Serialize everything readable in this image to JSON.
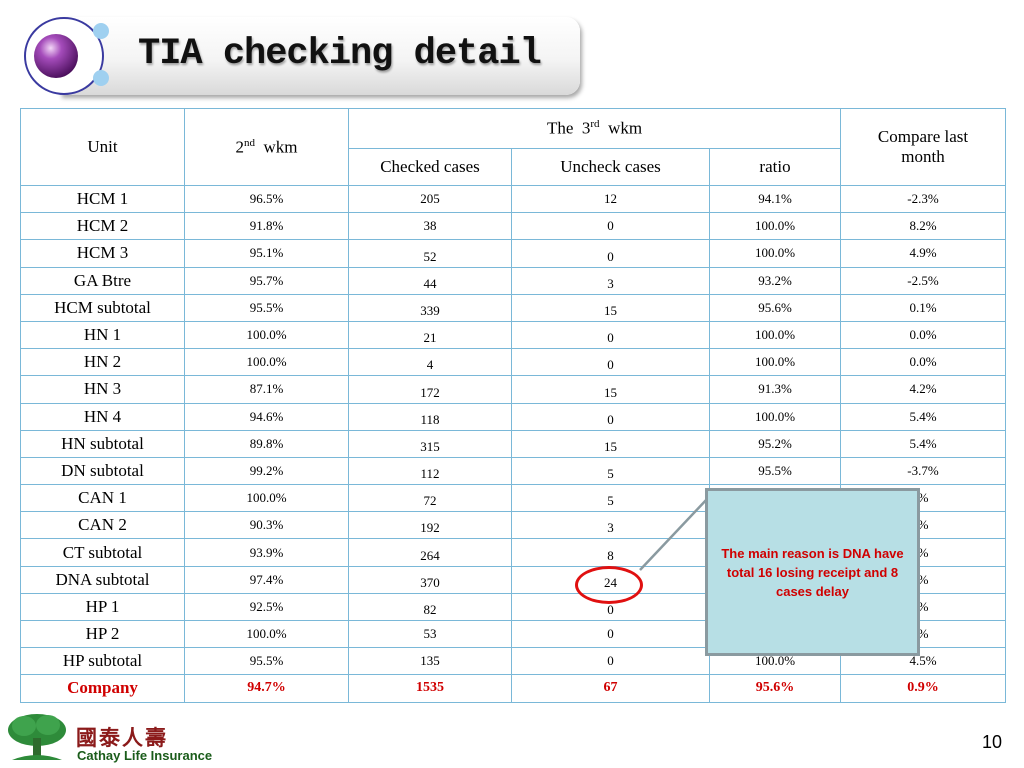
{
  "title": "TIA checking detail",
  "header": {
    "unit": "Unit",
    "prev_week_num": "2",
    "prev_week_sup": "nd",
    "prev_week_suffix": "wkm",
    "curr_week_prefix": "The",
    "curr_week_num": "3",
    "curr_week_sup": "rd",
    "curr_week_suffix": "wkm",
    "checked": "Checked cases",
    "uncheck": "Uncheck cases",
    "ratio": "ratio",
    "compare": "Compare last month"
  },
  "rows": [
    {
      "unit": "HCM 1",
      "prev": "96.5%",
      "checked": "205",
      "uncheck": "12",
      "ratio": "94.1%",
      "compare": "-2.3%"
    },
    {
      "unit": "HCM 2",
      "prev": "91.8%",
      "checked": "38",
      "uncheck": "0",
      "ratio": "100.0%",
      "compare": "8.2%"
    },
    {
      "unit": "HCM 3",
      "prev": "95.1%",
      "checked": "52",
      "uncheck": "0",
      "ratio": "100.0%",
      "compare": "4.9%"
    },
    {
      "unit": "GA Btre",
      "prev": "95.7%",
      "checked": "44",
      "uncheck": "3",
      "ratio": "93.2%",
      "compare": "-2.5%"
    },
    {
      "unit": "HCM subtotal",
      "prev": "95.5%",
      "checked": "339",
      "uncheck": "15",
      "ratio": "95.6%",
      "compare": "0.1%"
    },
    {
      "unit": "HN 1",
      "prev": "100.0%",
      "checked": "21",
      "uncheck": "0",
      "ratio": "100.0%",
      "compare": "0.0%"
    },
    {
      "unit": "HN 2",
      "prev": "100.0%",
      "checked": "4",
      "uncheck": "0",
      "ratio": "100.0%",
      "compare": "0.0%"
    },
    {
      "unit": "HN 3",
      "prev": "87.1%",
      "checked": "172",
      "uncheck": "15",
      "ratio": "91.3%",
      "compare": "4.2%"
    },
    {
      "unit": "HN 4",
      "prev": "94.6%",
      "checked": "118",
      "uncheck": "0",
      "ratio": "100.0%",
      "compare": "5.4%"
    },
    {
      "unit": "HN subtotal",
      "prev": "89.8%",
      "checked": "315",
      "uncheck": "15",
      "ratio": "95.2%",
      "compare": "5.4%"
    },
    {
      "unit": "DN subtotal",
      "prev": "99.2%",
      "checked": "112",
      "uncheck": "5",
      "ratio": "95.5%",
      "compare": "-3.7%"
    },
    {
      "unit": "CAN 1",
      "prev": "100.0%",
      "checked": "72",
      "uncheck": "5",
      "ratio": "",
      "compare": "%"
    },
    {
      "unit": "CAN 2",
      "prev": "90.3%",
      "checked": "192",
      "uncheck": "3",
      "ratio": "",
      "compare": "%"
    },
    {
      "unit": "CT subtotal",
      "prev": "93.9%",
      "checked": "264",
      "uncheck": "8",
      "ratio": "",
      "compare": "%"
    },
    {
      "unit": "DNA subtotal",
      "prev": "97.4%",
      "checked": "370",
      "uncheck": "24",
      "ratio": "",
      "compare": "%"
    },
    {
      "unit": "HP 1",
      "prev": "92.5%",
      "checked": "82",
      "uncheck": "0",
      "ratio": "",
      "compare": "%"
    },
    {
      "unit": "HP 2",
      "prev": "100.0%",
      "checked": "53",
      "uncheck": "0",
      "ratio": "",
      "compare": "%"
    },
    {
      "unit": "HP subtotal",
      "prev": "95.5%",
      "checked": "135",
      "uncheck": "0",
      "ratio": "100.0%",
      "compare": "4.5%"
    },
    {
      "unit": "Company",
      "prev": "94.7%",
      "checked": "1535",
      "uncheck": "67",
      "ratio": "95.6%",
      "compare": "0.9%"
    }
  ],
  "callout": "The main reason is DNA have total 16 losing receipt and 8 cases delay",
  "footer": {
    "logo_chinese": "國泰人壽",
    "logo_english": "Cathay Life Insurance",
    "page_number": "10"
  },
  "colors": {
    "grid": "#7ab8d8",
    "highlight": "#d00000",
    "callout_bg": "#b7dfe5",
    "orb": "#7a2a8c"
  }
}
